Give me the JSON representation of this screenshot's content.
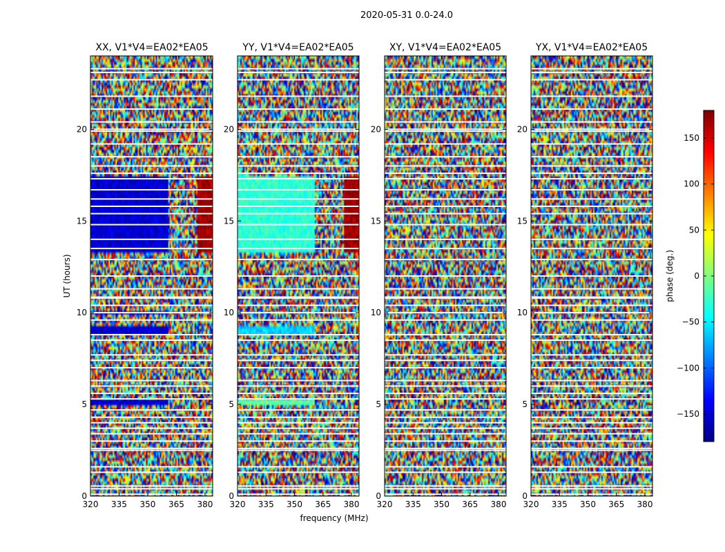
{
  "figure_title": "2020-05-31 0.0-24.0",
  "chart_data": {
    "type": "heatmap",
    "panels": [
      {
        "title": "XX, V1*V4=EA02*EA05",
        "polarization": "XX"
      },
      {
        "title": "YY, V1*V4=EA02*EA05",
        "polarization": "YY"
      },
      {
        "title": "XY, V1*V4=EA02*EA05",
        "polarization": "XY"
      },
      {
        "title": "YX, V1*V4=EA02*EA05",
        "polarization": "YX"
      }
    ],
    "xlabel": "frequency (MHz)",
    "ylabel": "UT (hours)",
    "xlim": [
      320,
      384
    ],
    "ylim": [
      0,
      24
    ],
    "xticks": [
      320,
      335,
      350,
      365,
      380
    ],
    "yticks": [
      0,
      5,
      10,
      15,
      20
    ],
    "colorbar": {
      "label": "phase (deg.)",
      "range": [
        -180,
        180
      ],
      "ticks": [
        -150,
        -100,
        -50,
        0,
        50,
        100,
        150
      ],
      "tick_labels": [
        "−150",
        "−100",
        "−50",
        "0",
        "50",
        "100",
        "150"
      ],
      "colormap": [
        "#00007f",
        "#0000ff",
        "#007fff",
        "#00ffff",
        "#7fff7f",
        "#ffff00",
        "#ff7f00",
        "#ff0000",
        "#7f0000"
      ]
    },
    "flagged_rows_ut": [
      0.1,
      0.4,
      0.55,
      1.3,
      1.6,
      2.5,
      2.6,
      3.0,
      3.4,
      3.7,
      4.0,
      4.3,
      4.7,
      5.3,
      5.6,
      6.0,
      6.3,
      7.0,
      7.4,
      7.7,
      8.5,
      8.8,
      9.6,
      10.0,
      10.4,
      10.8,
      10.85,
      11.3,
      12.0,
      12.9,
      13.5,
      14.0,
      14.8,
      15.4,
      15.8,
      16.2,
      16.7,
      17.3,
      17.6,
      18.0,
      18.5,
      19.2,
      19.9,
      20.0,
      20.4,
      21.1,
      21.8,
      22.7,
      23.1,
      23.3
    ],
    "coherent_blocks": [
      {
        "panel": "XX",
        "ut": [
          13.3,
          17.5
        ],
        "freq": [
          320,
          361
        ],
        "phase_deg": -150
      },
      {
        "panel": "XX",
        "ut": [
          4.95,
          5.25
        ],
        "freq": [
          320,
          361
        ],
        "phase_deg": -150
      },
      {
        "panel": "XX",
        "ut": [
          8.85,
          9.2
        ],
        "freq": [
          320,
          361
        ],
        "phase_deg": -150
      },
      {
        "panel": "XX",
        "ut": [
          9.95,
          10.1
        ],
        "freq": [
          320,
          361
        ],
        "phase_deg": -150
      },
      {
        "panel": "XX",
        "ut": [
          13.3,
          17.5
        ],
        "freq": [
          376,
          384
        ],
        "phase_deg": 170
      },
      {
        "panel": "YY",
        "ut": [
          13.3,
          17.5
        ],
        "freq": [
          320,
          361
        ],
        "phase_deg": -30
      },
      {
        "panel": "YY",
        "ut": [
          4.95,
          5.25
        ],
        "freq": [
          320,
          361
        ],
        "phase_deg": -10
      },
      {
        "panel": "YY",
        "ut": [
          8.85,
          9.2
        ],
        "freq": [
          320,
          361
        ],
        "phase_deg": -60
      },
      {
        "panel": "YY",
        "ut": [
          13.3,
          17.5
        ],
        "freq": [
          376,
          384
        ],
        "phase_deg": 170
      }
    ]
  }
}
